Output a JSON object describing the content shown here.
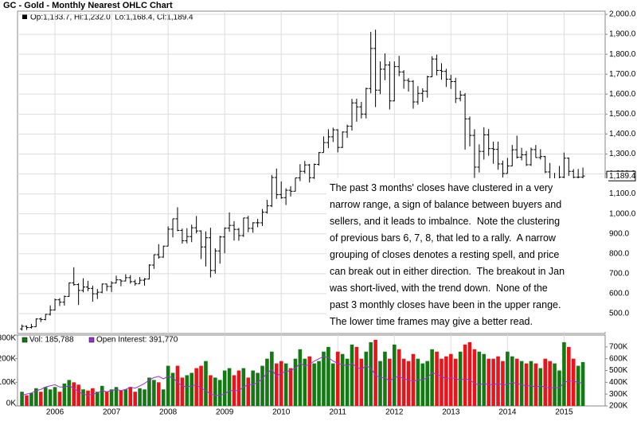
{
  "chart_data": [
    {
      "type": "ohlc",
      "title": "GC - Gold - Monthly Nearest OHLC Chart",
      "legend_text": "Op:1,183.7, Hi:1,232.0, Lo:1,168.4, Cl:1,189.4",
      "last_label": "1,189.4",
      "annotation": [
        "The past 3 months' closes have clustered in a very",
        "narrow range, a sign of balance between buyers and",
        "sellers, and it leads to imbalnce.  Note the clustering",
        "of previous bars 6, 7, 8, that led to a rally.  A narrow",
        "grouping of closes denotes a resting spell, and price",
        "can break out in either direction.  The breakout in Jan",
        "was short-lived, with the trend down.  None of the",
        "past 3 monthly closes have been in the upper range.",
        "The lower time frames may give a better read."
      ],
      "color": "#000000",
      "grid": true,
      "ylim": [
        400,
        2016
      ],
      "yticks": [
        {
          "value": 500,
          "label": "500.0"
        },
        {
          "value": 600,
          "label": "600.0"
        },
        {
          "value": 700,
          "label": "700.0"
        },
        {
          "value": 800,
          "label": "800.0"
        },
        {
          "value": 900,
          "label": "900.0"
        },
        {
          "value": 1000,
          "label": "1,000.0"
        },
        {
          "value": 1100,
          "label": "1,100.0"
        },
        {
          "value": 1200,
          "label": "1,200.0"
        },
        {
          "value": 1300,
          "label": "1,300.0"
        },
        {
          "value": 1400,
          "label": "1,400.0"
        },
        {
          "value": 1500,
          "label": "1,500.0"
        },
        {
          "value": 1600,
          "label": "1,600.0"
        },
        {
          "value": 1700,
          "label": "1,700.0"
        },
        {
          "value": 1800,
          "label": "1,800.0"
        },
        {
          "value": 1900,
          "label": "1,900.0"
        },
        {
          "value": 2000,
          "label": "2,000.0"
        }
      ],
      "open": [
        423,
        436,
        430,
        434,
        473,
        470,
        496,
        518,
        569,
        557,
        586,
        654,
        645,
        616,
        633,
        626,
        599,
        607,
        648,
        636,
        653,
        669,
        663,
        680,
        660,
        650,
        667,
        673,
        743,
        795,
        783,
        838,
        923,
        975,
        917,
        865,
        886,
        930,
        914,
        834,
        880,
        716,
        814,
        884,
        928,
        942,
        922,
        891,
        979,
        927,
        955,
        955,
        1008,
        1040,
        1182,
        1096,
        1081,
        1118,
        1113,
        1180,
        1213,
        1245,
        1181,
        1248,
        1307,
        1357,
        1386,
        1421,
        1333,
        1410,
        1439,
        1556,
        1536,
        1500,
        1628,
        1829,
        1620,
        1725,
        1746,
        1566,
        1738,
        1711,
        1669,
        1664,
        1561,
        1604,
        1615,
        1687,
        1776,
        1719,
        1714,
        1675,
        1663,
        1578,
        1595,
        1476,
        1393,
        1234,
        1313,
        1396,
        1327,
        1323,
        1250,
        1202,
        1240,
        1321,
        1284,
        1296,
        1246,
        1322,
        1282,
        1287,
        1210,
        1171,
        1175,
        1184,
        1279,
        1213,
        1183,
        1183.7
      ],
      "high": [
        445,
        440,
        448,
        476,
        480,
        498,
        541,
        575,
        577,
        590,
        656,
        732,
        652,
        677,
        664,
        640,
        623,
        650,
        650,
        662,
        690,
        670,
        697,
        693,
        670,
        683,
        678,
        747,
        796,
        848,
        840,
        937,
        975,
        1033,
        926,
        928,
        946,
        989,
        917,
        912,
        930,
        827,
        890,
        932,
        1007,
        963,
        929,
        980,
        990,
        958,
        975,
        1024,
        1070,
        1195,
        1227,
        1162,
        1128,
        1138,
        1180,
        1249,
        1265,
        1250,
        1252,
        1310,
        1388,
        1424,
        1432,
        1424,
        1413,
        1447,
        1576,
        1577,
        1561,
        1632,
        1912,
        1923,
        1764,
        1804,
        1764,
        1764,
        1792,
        1720,
        1680,
        1670,
        1640,
        1629,
        1692,
        1790,
        1798,
        1755,
        1727,
        1697,
        1682,
        1617,
        1605,
        1488,
        1424,
        1348,
        1434,
        1425,
        1362,
        1362,
        1267,
        1280,
        1345,
        1392,
        1331,
        1315,
        1332,
        1345,
        1324,
        1290,
        1255,
        1205,
        1240,
        1307,
        1282,
        1224,
        1225,
        1232
      ],
      "low": [
        415,
        418,
        425,
        433,
        458,
        466,
        490,
        515,
        538,
        540,
        584,
        640,
        543,
        606,
        612,
        560,
        573,
        602,
        613,
        608,
        652,
        637,
        662,
        650,
        640,
        649,
        640,
        671,
        724,
        775,
        780,
        837,
        882,
        913,
        851,
        852,
        858,
        902,
        773,
        736,
        681,
        700,
        750,
        802,
        910,
        866,
        865,
        884,
        908,
        905,
        933,
        939,
        1001,
        1034,
        1075,
        1075,
        1044,
        1087,
        1112,
        1164,
        1202,
        1157,
        1175,
        1242,
        1307,
        1329,
        1360,
        1308,
        1330,
        1381,
        1417,
        1462,
        1478,
        1478,
        1604,
        1535,
        1600,
        1670,
        1523,
        1564,
        1690,
        1627,
        1613,
        1527,
        1547,
        1561,
        1582,
        1685,
        1694,
        1672,
        1636,
        1626,
        1555,
        1564,
        1322,
        1338,
        1180,
        1207,
        1272,
        1291,
        1251,
        1221,
        1182,
        1202,
        1238,
        1277,
        1268,
        1240,
        1240,
        1281,
        1272,
        1204,
        1160,
        1131,
        1142,
        1167,
        1190,
        1142,
        1170,
        1168.4
      ],
      "close": [
        436,
        430,
        434,
        473,
        470,
        496,
        518,
        569,
        557,
        586,
        654,
        645,
        616,
        633,
        626,
        599,
        607,
        648,
        636,
        653,
        669,
        663,
        680,
        660,
        650,
        667,
        673,
        743,
        795,
        783,
        838,
        923,
        975,
        917,
        865,
        886,
        930,
        914,
        834,
        880,
        716,
        814,
        884,
        928,
        942,
        922,
        891,
        979,
        927,
        955,
        955,
        1008,
        1040,
        1182,
        1096,
        1081,
        1118,
        1113,
        1180,
        1213,
        1245,
        1181,
        1248,
        1307,
        1357,
        1386,
        1421,
        1333,
        1410,
        1439,
        1556,
        1536,
        1500,
        1628,
        1829,
        1620,
        1725,
        1746,
        1566,
        1738,
        1711,
        1669,
        1664,
        1561,
        1604,
        1615,
        1687,
        1776,
        1719,
        1714,
        1675,
        1663,
        1578,
        1595,
        1476,
        1393,
        1234,
        1313,
        1396,
        1327,
        1323,
        1250,
        1202,
        1240,
        1321,
        1284,
        1296,
        1246,
        1322,
        1282,
        1287,
        1210,
        1171,
        1175,
        1184,
        1279,
        1213,
        1183,
        1184,
        1189.4
      ]
    },
    {
      "type": "bar",
      "up_color": "#137a13",
      "down_color": "#e8141b",
      "categories": [
        null,
        null,
        null,
        null,
        null,
        null,
        null,
        "2006",
        null,
        null,
        null,
        null,
        null,
        null,
        null,
        null,
        null,
        null,
        null,
        "2007",
        null,
        null,
        null,
        null,
        null,
        null,
        null,
        null,
        null,
        null,
        null,
        "2008",
        null,
        null,
        null,
        null,
        null,
        null,
        null,
        null,
        null,
        null,
        null,
        "2009",
        null,
        null,
        null,
        null,
        null,
        null,
        null,
        null,
        null,
        null,
        null,
        "2010",
        null,
        null,
        null,
        null,
        null,
        null,
        null,
        null,
        null,
        null,
        null,
        "2011",
        null,
        null,
        null,
        null,
        null,
        null,
        null,
        null,
        null,
        null,
        null,
        "2012",
        null,
        null,
        null,
        null,
        null,
        null,
        null,
        null,
        null,
        null,
        null,
        "2013",
        null,
        null,
        null,
        null,
        null,
        null,
        null,
        null,
        null,
        null,
        null,
        "2014",
        null,
        null,
        null,
        null,
        null,
        null,
        null,
        null,
        null,
        null,
        null,
        "2015",
        null,
        null,
        null,
        null
      ],
      "ylim": [
        0,
        300000
      ],
      "yticks": [
        {
          "value": 0,
          "label": "0K"
        },
        {
          "value": 100000,
          "label": "100K"
        },
        {
          "value": 200000,
          "label": "200K"
        },
        {
          "value": 300000,
          "label": "300K"
        }
      ],
      "y2lim": [
        200000,
        800000
      ],
      "y2ticks": [
        {
          "value": 200000,
          "label": "200K"
        },
        {
          "value": 300000,
          "label": "300K"
        },
        {
          "value": 400000,
          "label": "400K"
        },
        {
          "value": 500000,
          "label": "500K"
        },
        {
          "value": 600000,
          "label": "600K"
        },
        {
          "value": 700000,
          "label": "700K"
        }
      ],
      "series": [
        {
          "name": "Vol: 185,788",
          "color": "#137a13",
          "values": [
            60000,
            45000,
            55000,
            75000,
            60000,
            80000,
            70000,
            80000,
            60000,
            95000,
            110000,
            100000,
            90000,
            70000,
            65000,
            75000,
            60000,
            85000,
            60000,
            70000,
            80000,
            65000,
            70000,
            80000,
            60000,
            75000,
            70000,
            120000,
            110000,
            100000,
            70000,
            170000,
            140000,
            170000,
            120000,
            130000,
            140000,
            160000,
            170000,
            190000,
            130000,
            120000,
            110000,
            150000,
            160000,
            130000,
            150000,
            160000,
            120000,
            150000,
            140000,
            170000,
            200000,
            230000,
            180000,
            190000,
            180000,
            160000,
            200000,
            240000,
            200000,
            210000,
            180000,
            190000,
            230000,
            250000,
            180000,
            230000,
            220000,
            200000,
            260000,
            250000,
            200000,
            230000,
            270000,
            280000,
            190000,
            230000,
            200000,
            260000,
            240000,
            200000,
            190000,
            220000,
            200000,
            180000,
            190000,
            240000,
            230000,
            200000,
            210000,
            220000,
            200000,
            230000,
            260000,
            270000,
            240000,
            230000,
            220000,
            200000,
            200000,
            210000,
            190000,
            230000,
            210000,
            200000,
            190000,
            180000,
            190000,
            180000,
            160000,
            200000,
            190000,
            180000,
            150000,
            270000,
            250000,
            200000,
            170000,
            185788
          ]
        },
        {
          "name": "Open Interest: 391,770",
          "color": "#9933cc",
          "axis": "y2",
          "values": [
            290000,
            300000,
            310000,
            330000,
            340000,
            360000,
            370000,
            380000,
            360000,
            360000,
            370000,
            350000,
            320000,
            300000,
            290000,
            300000,
            310000,
            330000,
            320000,
            330000,
            340000,
            330000,
            340000,
            360000,
            350000,
            370000,
            390000,
            420000,
            440000,
            450000,
            430000,
            450000,
            440000,
            400000,
            370000,
            360000,
            370000,
            380000,
            350000,
            330000,
            300000,
            290000,
            290000,
            300000,
            330000,
            330000,
            330000,
            360000,
            380000,
            380000,
            400000,
            430000,
            480000,
            510000,
            450000,
            480000,
            490000,
            500000,
            520000,
            560000,
            540000,
            550000,
            580000,
            600000,
            620000,
            610000,
            580000,
            560000,
            550000,
            540000,
            560000,
            530000,
            510000,
            540000,
            520000,
            460000,
            440000,
            440000,
            410000,
            440000,
            450000,
            430000,
            420000,
            410000,
            420000,
            420000,
            440000,
            480000,
            470000,
            450000,
            430000,
            440000,
            430000,
            420000,
            430000,
            420000,
            390000,
            380000,
            390000,
            380000,
            380000,
            390000,
            380000,
            380000,
            400000,
            390000,
            380000,
            370000,
            370000,
            360000,
            370000,
            360000,
            350000,
            360000,
            350000,
            400000,
            410000,
            410000,
            400000,
            391770
          ]
        }
      ]
    }
  ]
}
